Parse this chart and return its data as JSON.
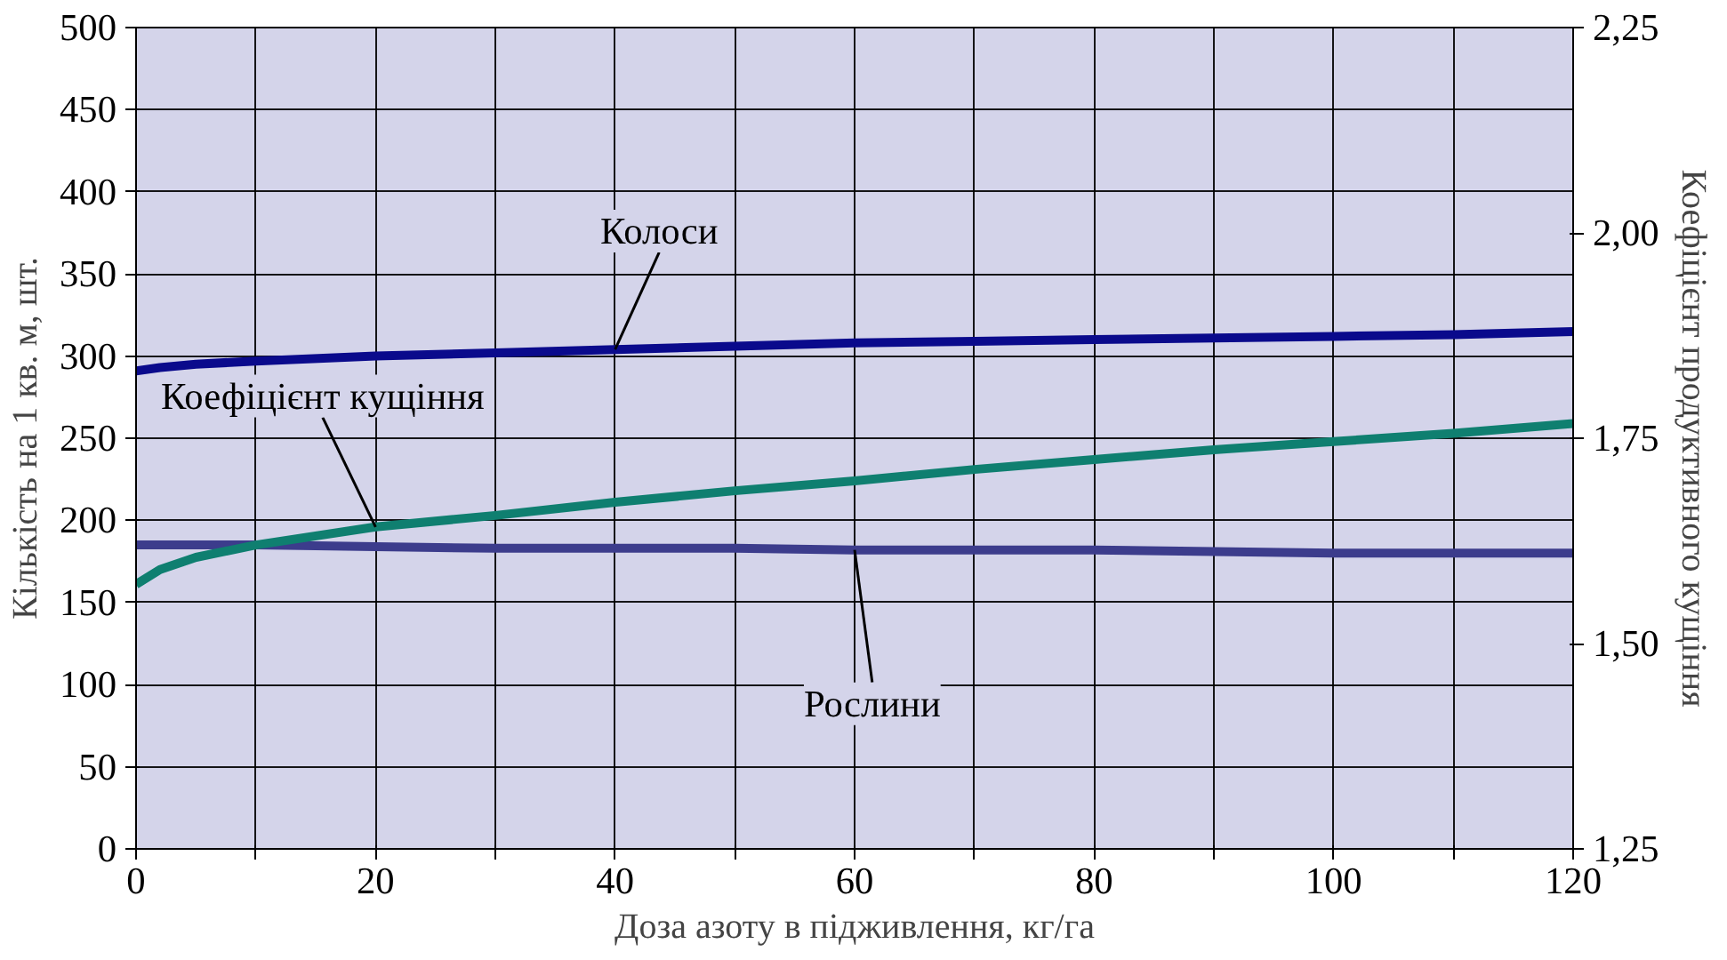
{
  "chart_data": {
    "type": "line",
    "xlabel": "Доза азоту в підживлення, кг/га",
    "ylabel": "Кількість на 1 кв. м, шт.",
    "y2label": "Коефіцієнт продуктивного кущіння",
    "x": [
      0,
      2,
      5,
      10,
      20,
      30,
      40,
      50,
      60,
      70,
      80,
      90,
      100,
      110,
      120
    ],
    "series": [
      {
        "name": "Колоси",
        "color": "#0a0a8c",
        "values": [
          291,
          293,
          295,
          297,
          300,
          302,
          304,
          306,
          308,
          309,
          310,
          311,
          312,
          313,
          315
        ]
      },
      {
        "name": "Рослини",
        "color": "#3c3c8c",
        "values": [
          185,
          185,
          185,
          185,
          184,
          183,
          183,
          183,
          182,
          182,
          182,
          181,
          180,
          180,
          180
        ]
      },
      {
        "name": "Коефіцієнт кущіння",
        "color": "#0f7f70",
        "axis": "y2",
        "values": [
          1.572,
          1.59,
          1.605,
          1.62,
          1.642,
          1.656,
          1.672,
          1.686,
          1.698,
          1.712,
          1.724,
          1.736,
          1.746,
          1.756,
          1.768
        ]
      }
    ],
    "xlim": [
      0,
      120
    ],
    "ylim": [
      0,
      500
    ],
    "y2lim": [
      1.25,
      2.25
    ],
    "xticks": [
      0,
      {
        "value": 10,
        "label": null
      },
      20,
      {
        "value": 30,
        "label": null
      },
      40,
      {
        "value": 50,
        "label": null
      },
      60,
      {
        "value": 70,
        "label": null
      },
      80,
      {
        "value": 90,
        "label": null
      },
      100,
      {
        "value": 110,
        "label": null
      },
      120
    ],
    "yticks": [
      0,
      50,
      100,
      150,
      200,
      250,
      300,
      350,
      400,
      450,
      500
    ],
    "y2ticks": [
      {
        "value": 1.25,
        "label": "1,25"
      },
      {
        "value": 1.5,
        "label": "1,50"
      },
      {
        "value": 1.75,
        "label": "1,75"
      },
      {
        "value": 2.0,
        "label": "2,00"
      },
      {
        "value": 2.25,
        "label": "2,25"
      }
    ],
    "grid": true,
    "marker": "none",
    "line_style": "solid"
  }
}
